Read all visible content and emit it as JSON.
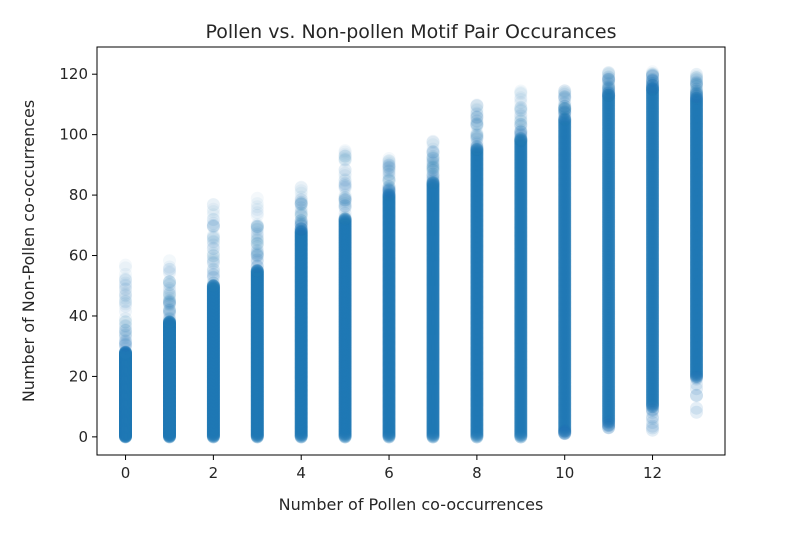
{
  "chart_data": {
    "type": "scatter",
    "title": "Pollen vs. Non-pollen Motif Pair Occurances",
    "xlabel": "Number of Pollen co-occurrences",
    "ylabel": "Number of Non-Pollen co-occurrences",
    "xlim": [
      -0.65,
      13.65
    ],
    "ylim": [
      -6,
      129
    ],
    "xticks": [
      0,
      2,
      4,
      6,
      8,
      10,
      12
    ],
    "yticks": [
      0,
      20,
      40,
      60,
      80,
      100,
      120
    ],
    "grid": false,
    "color": "#1f77b4",
    "marker_alpha": 0.05,
    "series": [
      {
        "x_categories": [
          0,
          1,
          2,
          3,
          4,
          5,
          6,
          7,
          8,
          9,
          10,
          11,
          12,
          13
        ],
        "y_dense_min": [
          0,
          0,
          0,
          0,
          0,
          0,
          0,
          0,
          0,
          0,
          2,
          5,
          10,
          20
        ],
        "y_dense_max": [
          28,
          38,
          50,
          55,
          68,
          72,
          80,
          84,
          95,
          98,
          105,
          113,
          115,
          112
        ],
        "y_sparse_max": [
          57,
          60,
          77,
          80,
          83,
          95,
          93,
          98,
          110,
          116,
          115,
          121,
          121,
          120
        ],
        "y_sparse_min": [
          0,
          0,
          0,
          0,
          0,
          0,
          0,
          0,
          0,
          0,
          1,
          3,
          1,
          8
        ]
      }
    ]
  }
}
